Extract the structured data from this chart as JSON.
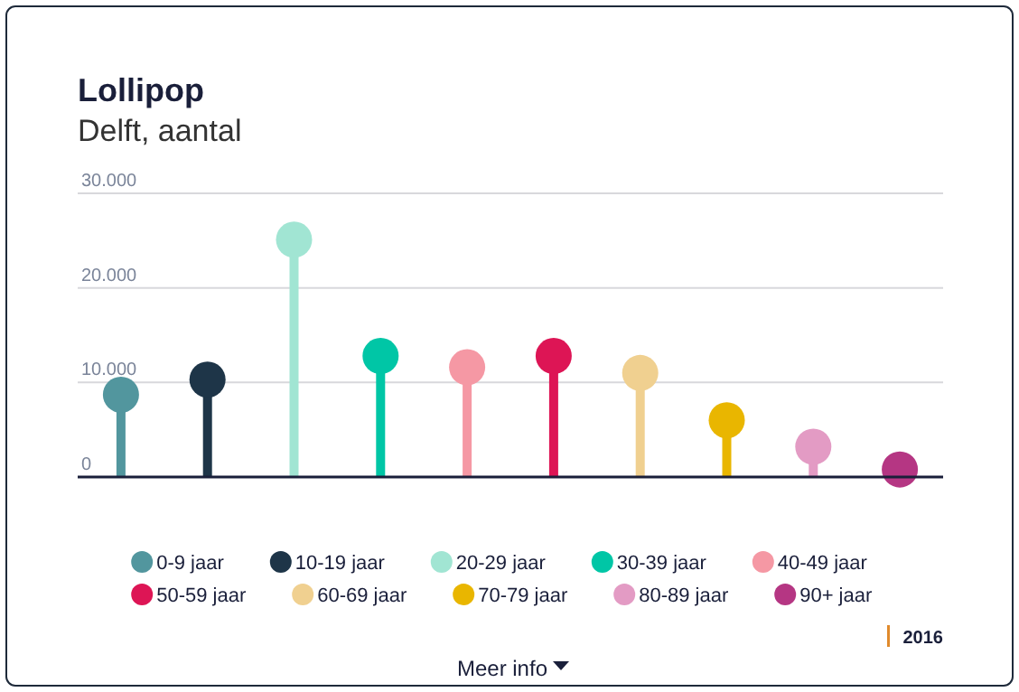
{
  "chart_data": {
    "type": "lollipop",
    "title": "Lollipop",
    "subtitle": "Delft, aantal",
    "categories": [
      null,
      null,
      null,
      null,
      null,
      null,
      null,
      null,
      null,
      null
    ],
    "series": [
      {
        "name": "0-9 jaar",
        "color": "#52969e",
        "values": [
          8700,
          null,
          null,
          null,
          null,
          null,
          null,
          null,
          null,
          null
        ]
      },
      {
        "name": "10-19 jaar",
        "color": "#1e3548",
        "values": [
          null,
          10300,
          null,
          null,
          null,
          null,
          null,
          null,
          null,
          null
        ]
      },
      {
        "name": "20-29 jaar",
        "color": "#a1e5d3",
        "values": [
          null,
          null,
          25100,
          null,
          null,
          null,
          null,
          null,
          null,
          null
        ]
      },
      {
        "name": "30-39 jaar",
        "color": "#00c6a6",
        "values": [
          null,
          null,
          null,
          12800,
          null,
          null,
          null,
          null,
          null,
          null
        ]
      },
      {
        "name": "40-49 jaar",
        "color": "#f598a4",
        "values": [
          null,
          null,
          null,
          null,
          11600,
          null,
          null,
          null,
          null,
          null
        ]
      },
      {
        "name": "50-59 jaar",
        "color": "#dd1555",
        "values": [
          null,
          null,
          null,
          null,
          null,
          12800,
          null,
          null,
          null,
          null
        ]
      },
      {
        "name": "60-69 jaar",
        "color": "#f0d090",
        "values": [
          null,
          null,
          null,
          null,
          null,
          null,
          11000,
          null,
          null,
          null
        ]
      },
      {
        "name": "70-79 jaar",
        "color": "#e9b600",
        "values": [
          null,
          null,
          null,
          null,
          null,
          null,
          null,
          6000,
          null,
          null
        ]
      },
      {
        "name": "80-89 jaar",
        "color": "#e39bc4",
        "values": [
          null,
          null,
          null,
          null,
          null,
          null,
          null,
          null,
          3200,
          null
        ]
      },
      {
        "name": "90+ jaar",
        "color": "#b53683",
        "values": [
          null,
          null,
          null,
          null,
          null,
          null,
          null,
          null,
          null,
          800
        ]
      }
    ],
    "ylim": [
      0,
      30000
    ],
    "yticks": [
      {
        "value": 0,
        "label": "0"
      },
      {
        "value": 10000,
        "label": "10.000"
      },
      {
        "value": 20000,
        "label": "20.000"
      },
      {
        "value": 30000,
        "label": "30.000"
      }
    ],
    "grid": "y",
    "legend": "bottom",
    "annotations": [
      "2016",
      "Meer info"
    ]
  }
}
